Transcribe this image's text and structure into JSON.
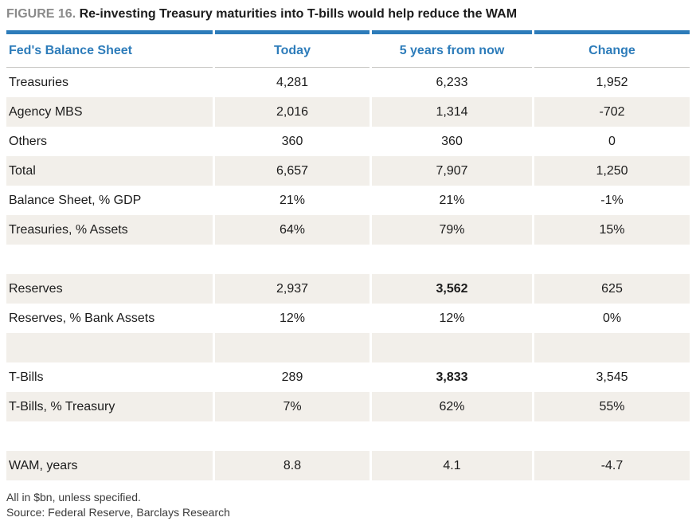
{
  "figure": {
    "label": "FIGURE 16.",
    "title": "Re-investing Treasury maturities into T-bills would help reduce the WAM"
  },
  "table": {
    "columns": [
      "Fed's Balance Sheet",
      "Today",
      "5 years from now",
      "Change"
    ],
    "rows": [
      {
        "label": "Treasuries",
        "today": "4,281",
        "future": "6,233",
        "change": "1,952"
      },
      {
        "label": "Agency MBS",
        "today": "2,016",
        "future": "1,314",
        "change": "-702"
      },
      {
        "label": "Others",
        "today": "360",
        "future": "360",
        "change": "0"
      },
      {
        "label": "Total",
        "today": "6,657",
        "future": "7,907",
        "change": "1,250"
      },
      {
        "label": "Balance Sheet, % GDP",
        "today": "21%",
        "future": "21%",
        "change": "-1%"
      },
      {
        "label": "Treasuries, % Assets",
        "today": "64%",
        "future": "79%",
        "change": "15%"
      },
      {
        "label": "",
        "today": "",
        "future": "",
        "change": ""
      },
      {
        "label": "Reserves",
        "today": "2,937",
        "future": "3,562",
        "change": "625"
      },
      {
        "label": "Reserves, % Bank Assets",
        "today": "12%",
        "future": "12%",
        "change": "0%"
      },
      {
        "label": "",
        "today": "",
        "future": "",
        "change": ""
      },
      {
        "label": "T-Bills",
        "today": "289",
        "future": "3,833",
        "change": "3,545"
      },
      {
        "label": "T-Bills, % Treasury",
        "today": "7%",
        "future": "62%",
        "change": "55%"
      },
      {
        "label": "",
        "today": "",
        "future": "",
        "change": ""
      },
      {
        "label": "WAM, years",
        "today": "8.8",
        "future": "4.1",
        "change": "-4.7"
      }
    ]
  },
  "chart_data": {
    "type": "table",
    "title": "Re-investing Treasury maturities into T-bills would help reduce the WAM",
    "columns": [
      "Fed's Balance Sheet",
      "Today",
      "5 years from now",
      "Change"
    ],
    "rows": [
      [
        "Treasuries",
        4281,
        6233,
        1952
      ],
      [
        "Agency MBS",
        2016,
        1314,
        -702
      ],
      [
        "Others",
        360,
        360,
        0
      ],
      [
        "Total",
        6657,
        7907,
        1250
      ],
      [
        "Balance Sheet, % GDP",
        "21%",
        "21%",
        "-1%"
      ],
      [
        "Treasuries, % Assets",
        "64%",
        "79%",
        "15%"
      ],
      [
        "Reserves",
        2937,
        3562,
        625
      ],
      [
        "Reserves, % Bank Assets",
        "12%",
        "12%",
        "0%"
      ],
      [
        "T-Bills",
        289,
        3833,
        3545
      ],
      [
        "T-Bills, % Treasury",
        "7%",
        "62%",
        "55%"
      ],
      [
        "WAM, years",
        8.8,
        4.1,
        -4.7
      ]
    ]
  },
  "footer": {
    "note": "All in $bn, unless specified.",
    "source": "Source: Federal Reserve, Barclays Research"
  },
  "colors": {
    "accent_blue": "#2d7cba",
    "row_stripe": "#f2efea",
    "header_rule": "#c8c7c3",
    "figure_label_gray": "#8b8b8b"
  }
}
